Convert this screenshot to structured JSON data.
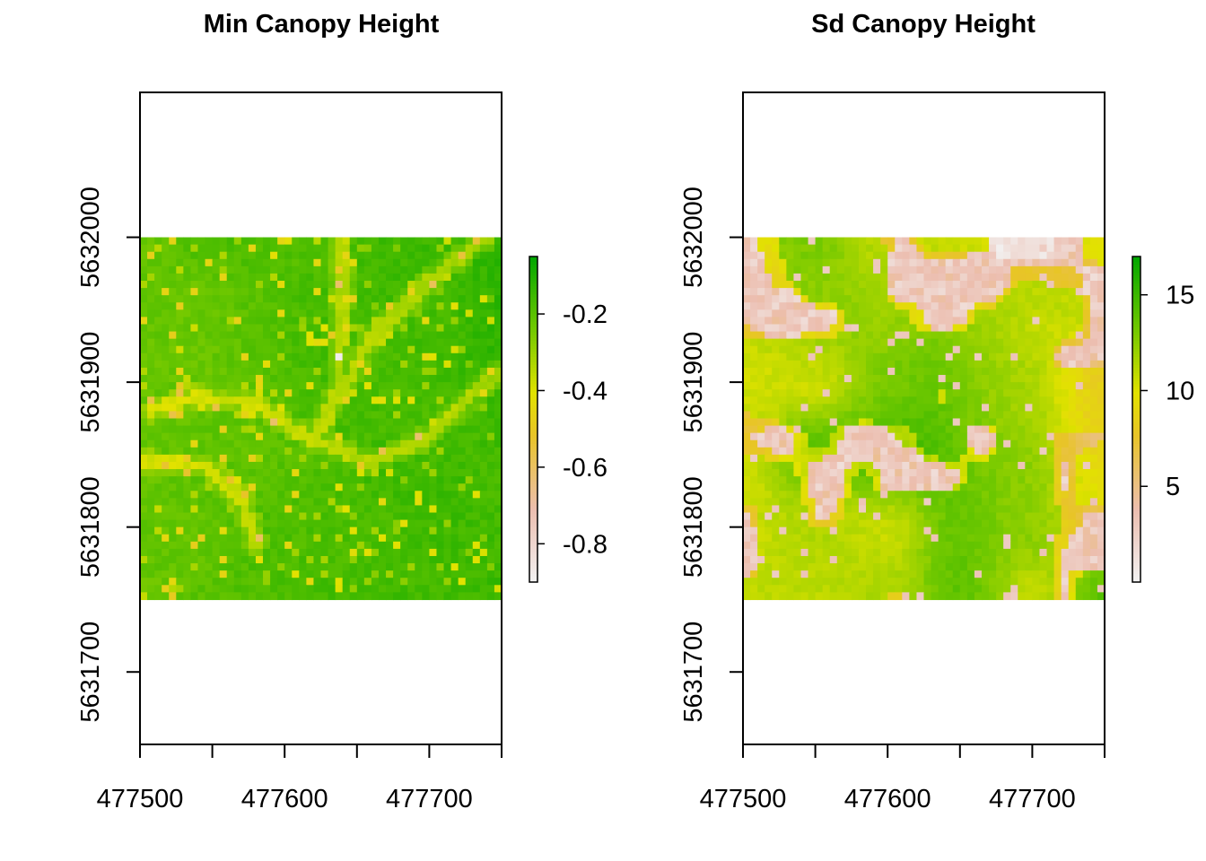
{
  "chart_data": [
    {
      "type": "heatmap",
      "title": "Min Canopy Height",
      "x_range": [
        477500,
        477750
      ],
      "y_range": [
        5631650,
        5632100
      ],
      "raster_extent": {
        "x": [
          477500,
          477750
        ],
        "y": [
          5631750,
          5632000
        ]
      },
      "x_ticks": [
        477500,
        477550,
        477600,
        477650,
        477700,
        477750
      ],
      "x_tick_labels": [
        "477500",
        "477600",
        "477700"
      ],
      "y_ticks": [
        5631700,
        5631800,
        5631900,
        5632000
      ],
      "y_tick_labels": [
        "5631700",
        "5631800",
        "5631900",
        "5632000"
      ],
      "legend": {
        "range": [
          -0.9,
          -0.05
        ],
        "ticks": [
          -0.2,
          -0.4,
          -0.6,
          -0.8
        ],
        "tick_labels": [
          "-0.2",
          "-0.4",
          "-0.6",
          "-0.8"
        ],
        "placement": "right"
      },
      "colormap": "terrain",
      "features": "mostly green (-0.1 to -0.2) with yellow linear streaks (stream/road lines) converging near 477620, 5631860"
    },
    {
      "type": "heatmap",
      "title": "Sd Canopy Height",
      "x_range": [
        477500,
        477750
      ],
      "y_range": [
        5631650,
        5632100
      ],
      "raster_extent": {
        "x": [
          477500,
          477750
        ],
        "y": [
          5631750,
          5632000
        ]
      },
      "x_ticks": [
        477500,
        477550,
        477600,
        477650,
        477700,
        477750
      ],
      "x_tick_labels": [
        "477500",
        "477600",
        "477700"
      ],
      "y_ticks": [
        5631700,
        5631800,
        5631900,
        5632000
      ],
      "y_tick_labels": [
        "5631700",
        "5631800",
        "5631900",
        "5632000"
      ],
      "legend": {
        "range": [
          0,
          17
        ],
        "ticks": [
          15,
          10,
          5
        ],
        "tick_labels": [
          "15",
          "10",
          "5"
        ],
        "placement": "right"
      },
      "colormap": "terrain",
      "features": "green (12-16) with pink/white gaps (0-3) in the north-centre and scattered patches, yellow (8-10) to the east"
    }
  ]
}
